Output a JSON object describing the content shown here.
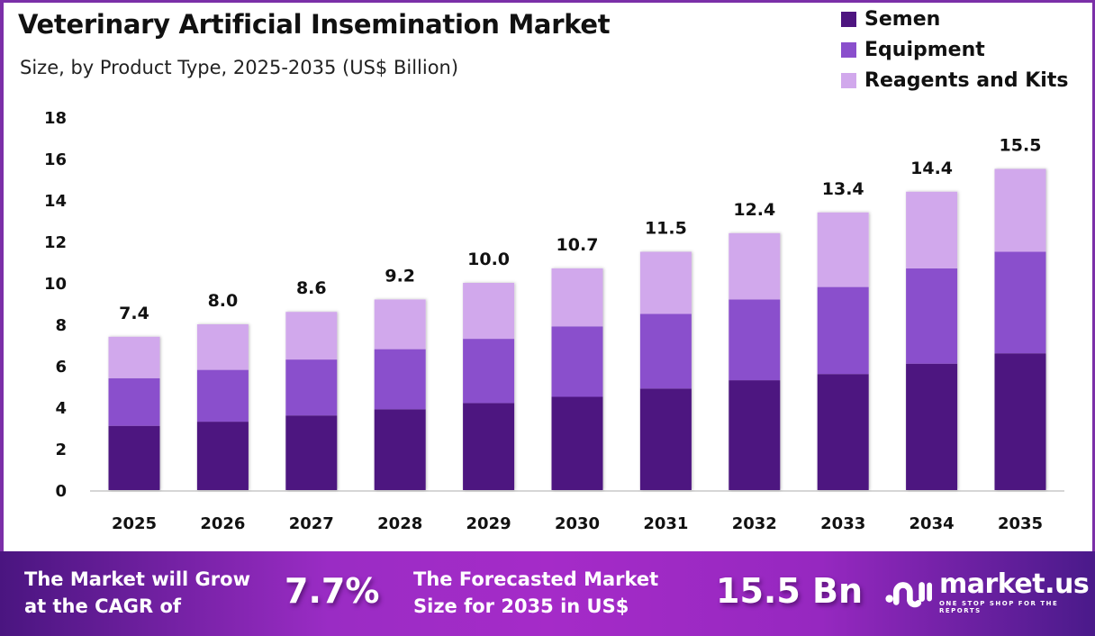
{
  "header": {
    "title": "Veterinary Artificial Insemination Market",
    "subtitle": "Size, by Product Type, 2025-2035 (US$ Billion)"
  },
  "legend": [
    {
      "label": "Semen",
      "color": "#4e1580"
    },
    {
      "label": "Equipment",
      "color": "#8a4fcc"
    },
    {
      "label": "Reagents and Kits",
      "color": "#d1a8ec"
    }
  ],
  "chart_data": {
    "type": "bar",
    "stacked": true,
    "title": "Veterinary Artificial Insemination Market",
    "subtitle": "Size, by Product Type, 2025-2035 (US$ Billion)",
    "xlabel": "",
    "ylabel": "",
    "categories": [
      "2025",
      "2026",
      "2027",
      "2028",
      "2029",
      "2030",
      "2031",
      "2032",
      "2033",
      "2034",
      "2035"
    ],
    "series": [
      {
        "name": "Semen",
        "color": "#4e1580",
        "values": [
          3.1,
          3.3,
          3.6,
          3.9,
          4.2,
          4.5,
          4.9,
          5.3,
          5.6,
          6.1,
          6.6
        ]
      },
      {
        "name": "Equipment",
        "color": "#8a4fcc",
        "values": [
          2.3,
          2.5,
          2.7,
          2.9,
          3.1,
          3.4,
          3.6,
          3.9,
          4.2,
          4.6,
          4.9
        ]
      },
      {
        "name": "Reagents and Kits",
        "color": "#d1a8ec",
        "values": [
          2.0,
          2.2,
          2.3,
          2.4,
          2.7,
          2.8,
          3.0,
          3.2,
          3.6,
          3.7,
          4.0
        ]
      }
    ],
    "totals": [
      7.4,
      8.0,
      8.6,
      9.2,
      10.0,
      10.7,
      11.5,
      12.4,
      13.4,
      14.4,
      15.5
    ],
    "total_labels": [
      "7.4",
      "8.0",
      "8.6",
      "9.2",
      "10.0",
      "10.7",
      "11.5",
      "12.4",
      "13.4",
      "14.4",
      "15.5"
    ],
    "ylim": [
      0,
      18
    ],
    "yticks": [
      0,
      2,
      4,
      6,
      8,
      10,
      12,
      14,
      16,
      18
    ],
    "grid": false,
    "legend_position": "top-right"
  },
  "footer": {
    "cagr_text_line1": "The Market will Grow",
    "cagr_text_line2": "at the CAGR of",
    "cagr_value": "7.7%",
    "forecast_text_line1": "The Forecasted Market",
    "forecast_text_line2": "Size for 2035 in US$",
    "forecast_value": "15.5 Bn",
    "brand_name": "market.us",
    "brand_tagline": "ONE STOP SHOP FOR THE REPORTS",
    "brand_icon": "market-us-logo-icon"
  }
}
